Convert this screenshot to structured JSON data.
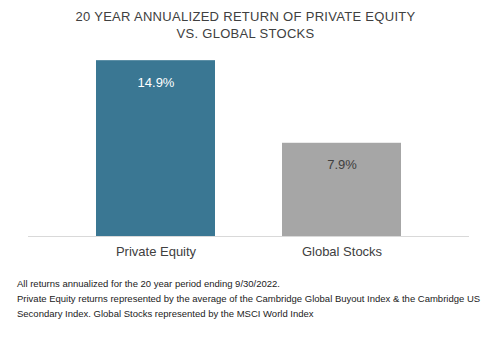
{
  "chart_data": {
    "type": "bar",
    "title": [
      "20 YEAR ANNUALIZED RETURN OF PRIVATE EQUITY",
      "VS. GLOBAL STOCKS"
    ],
    "categories": [
      "Private Equity",
      "Global Stocks"
    ],
    "values": [
      14.9,
      7.9
    ],
    "value_labels": [
      "14.9%",
      "7.9%"
    ],
    "colors": [
      "#3a7793",
      "#a6a6a6"
    ],
    "data_labels": true,
    "tick_labels": "x",
    "ylim": [
      0,
      15
    ],
    "notes": [
      "All returns annualized for the 20 year period ending 9/30/2022.",
      "Private Equity returns represented by the average of the Cambridge Global Buyout Index & the Cambridge US Secondary Index. Global Stocks represented by the MSCI World Index"
    ]
  }
}
